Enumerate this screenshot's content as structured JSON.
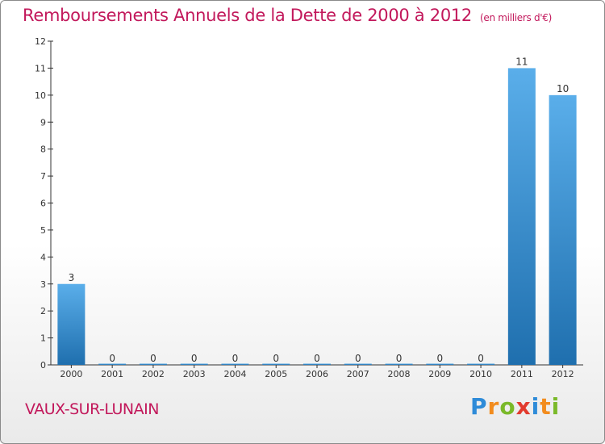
{
  "header": {
    "title": "Remboursements Annuels de la Dette de 2000 à 2012",
    "subtitle": "(en milliers d'€)"
  },
  "place": "VAUX-SUR-LUNAIN",
  "logo": {
    "letters": [
      "P",
      "r",
      "o",
      "x",
      "i",
      "t",
      "i"
    ]
  },
  "colors": {
    "title": "#c2185b",
    "bar_light": "#5aaeea",
    "bar_dark": "#1f6fae"
  },
  "chart_data": {
    "type": "bar",
    "title": "Remboursements Annuels de la Dette de 2000 à 2012",
    "unit": "(en milliers d'€)",
    "categories": [
      "2000",
      "2001",
      "2002",
      "2003",
      "2004",
      "2005",
      "2006",
      "2007",
      "2008",
      "2009",
      "2010",
      "2011",
      "2012"
    ],
    "values": [
      3,
      0,
      0,
      0,
      0,
      0,
      0,
      0,
      0,
      0,
      0,
      11,
      10
    ],
    "yticks": [
      0,
      1,
      2,
      3,
      4,
      5,
      6,
      7,
      8,
      9,
      10,
      11,
      12
    ],
    "ylim": [
      0,
      12
    ],
    "xlabel": "",
    "ylabel": "",
    "grid": false,
    "data_labels": true
  }
}
